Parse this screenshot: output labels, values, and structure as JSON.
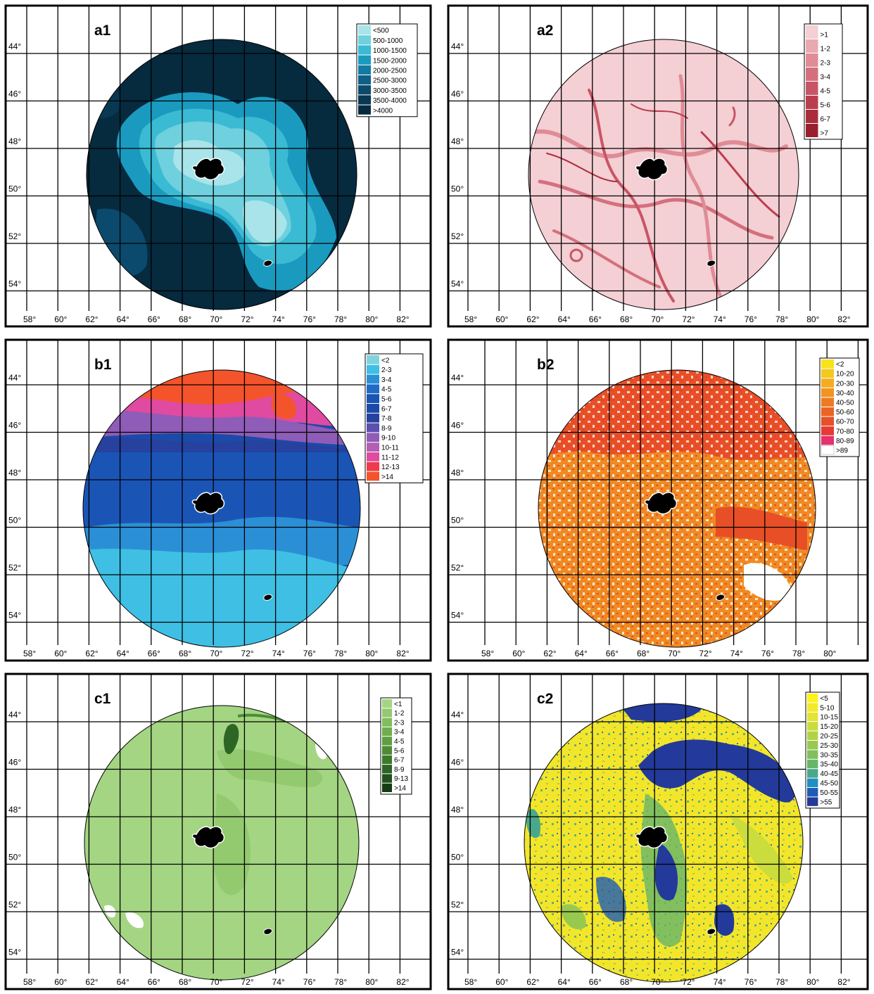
{
  "lat_labels": [
    "44°",
    "46°",
    "48°",
    "50°",
    "52°",
    "54°"
  ],
  "lon_labels": [
    "58°",
    "60°",
    "62°",
    "64°",
    "66°",
    "68°",
    "70°",
    "72°",
    "74°",
    "76°",
    "78°",
    "80°",
    "82°"
  ],
  "panels": [
    {
      "id": "a1",
      "label": "a1",
      "base_color": "#6fd0de",
      "legend": [
        {
          "label": "<500",
          "color": "#a8e4ea"
        },
        {
          "label": "500-1000",
          "color": "#6fd0de"
        },
        {
          "label": "1000-1500",
          "color": "#3bbad3"
        },
        {
          "label": "1500-2000",
          "color": "#1b9ac0"
        },
        {
          "label": "2000-2500",
          "color": "#137ba3"
        },
        {
          "label": "2500-3000",
          "color": "#0f5f86"
        },
        {
          "label": "3000-3500",
          "color": "#0b4a6c"
        },
        {
          "label": "3500-4000",
          "color": "#083852"
        },
        {
          "label": ">4000",
          "color": "#062a3e"
        }
      ]
    },
    {
      "id": "a2",
      "label": "a2",
      "base_color": "#f1c6cc",
      "legend": [
        {
          "label": ">1",
          "color": "#f4cfd4"
        },
        {
          "label": "1-2",
          "color": "#eaa8b1"
        },
        {
          "label": "2-3",
          "color": "#e08b96"
        },
        {
          "label": "3-4",
          "color": "#d4707d"
        },
        {
          "label": "4-5",
          "color": "#c85565"
        },
        {
          "label": "5-6",
          "color": "#bb3e4e"
        },
        {
          "label": "6-7",
          "color": "#ab2d3c"
        },
        {
          "label": ">7",
          "color": "#9a1f2e"
        }
      ]
    },
    {
      "id": "b1",
      "label": "b1",
      "base_color": "#1e4fb0",
      "legend": [
        {
          "label": "<2",
          "color": "#7fd3de"
        },
        {
          "label": "2-3",
          "color": "#3fbfe4"
        },
        {
          "label": "3-4",
          "color": "#2b8fd6"
        },
        {
          "label": "4-5",
          "color": "#1f6cc8"
        },
        {
          "label": "5-6",
          "color": "#1a55b6"
        },
        {
          "label": "6-7",
          "color": "#1c4aa8"
        },
        {
          "label": "7-8",
          "color": "#26419e"
        },
        {
          "label": "8-9",
          "color": "#5b4fb0"
        },
        {
          "label": "9-10",
          "color": "#8f5cb8"
        },
        {
          "label": "10-11",
          "color": "#b35fb4"
        },
        {
          "label": "11-12",
          "color": "#e04aa0"
        },
        {
          "label": "12-13",
          "color": "#ee3a4a"
        },
        {
          "label": ">14",
          "color": "#f4542b"
        }
      ]
    },
    {
      "id": "b2",
      "label": "b2",
      "base_color": "#ef8a22",
      "legend": [
        {
          "label": "<2",
          "color": "#f8e21c"
        },
        {
          "label": "10-20",
          "color": "#f5c81c"
        },
        {
          "label": "20-30",
          "color": "#f3ad1f"
        },
        {
          "label": "30-40",
          "color": "#f19420"
        },
        {
          "label": "40-50",
          "color": "#ee7b22"
        },
        {
          "label": "50-60",
          "color": "#eb6424"
        },
        {
          "label": "60-70",
          "color": "#e84f26"
        },
        {
          "label": "70-80",
          "color": "#e63a32"
        },
        {
          "label": "80-89",
          "color": "#e8306e"
        },
        {
          "label": ">89",
          "color": "#ffffff"
        }
      ]
    },
    {
      "id": "c1",
      "label": "c1",
      "base_color": "#9ccf7a",
      "legend": [
        {
          "label": "<1",
          "color": "#a4d583"
        },
        {
          "label": "1-2",
          "color": "#93c96f"
        },
        {
          "label": "2-3",
          "color": "#80bd5c"
        },
        {
          "label": "3-4",
          "color": "#6eae4c"
        },
        {
          "label": "4-5",
          "color": "#5e9f40"
        },
        {
          "label": "5-6",
          "color": "#4c8c36"
        },
        {
          "label": "6-7",
          "color": "#3c7a2c"
        },
        {
          "label": "8-9",
          "color": "#2d6624"
        },
        {
          "label": "9-13",
          "color": "#20521c"
        },
        {
          "label": ">14",
          "color": "#143d14"
        }
      ]
    },
    {
      "id": "c2",
      "label": "c2",
      "base_color": "#f3e62a",
      "legend": [
        {
          "label": "<5",
          "color": "#fff21a"
        },
        {
          "label": "5-10",
          "color": "#f3ea2a"
        },
        {
          "label": "10-15",
          "color": "#e3e433"
        },
        {
          "label": "15-20",
          "color": "#cbdc3d"
        },
        {
          "label": "20-25",
          "color": "#b2d347"
        },
        {
          "label": "25-30",
          "color": "#97c94f"
        },
        {
          "label": "30-35",
          "color": "#7fc05a"
        },
        {
          "label": "35-40",
          "color": "#66b66a"
        },
        {
          "label": "40-45",
          "color": "#4aa88a"
        },
        {
          "label": "45-50",
          "color": "#1f8fc0"
        },
        {
          "label": "50-55",
          "color": "#1f5db4"
        },
        {
          "label": ">55",
          "color": "#233a9a"
        }
      ]
    }
  ]
}
